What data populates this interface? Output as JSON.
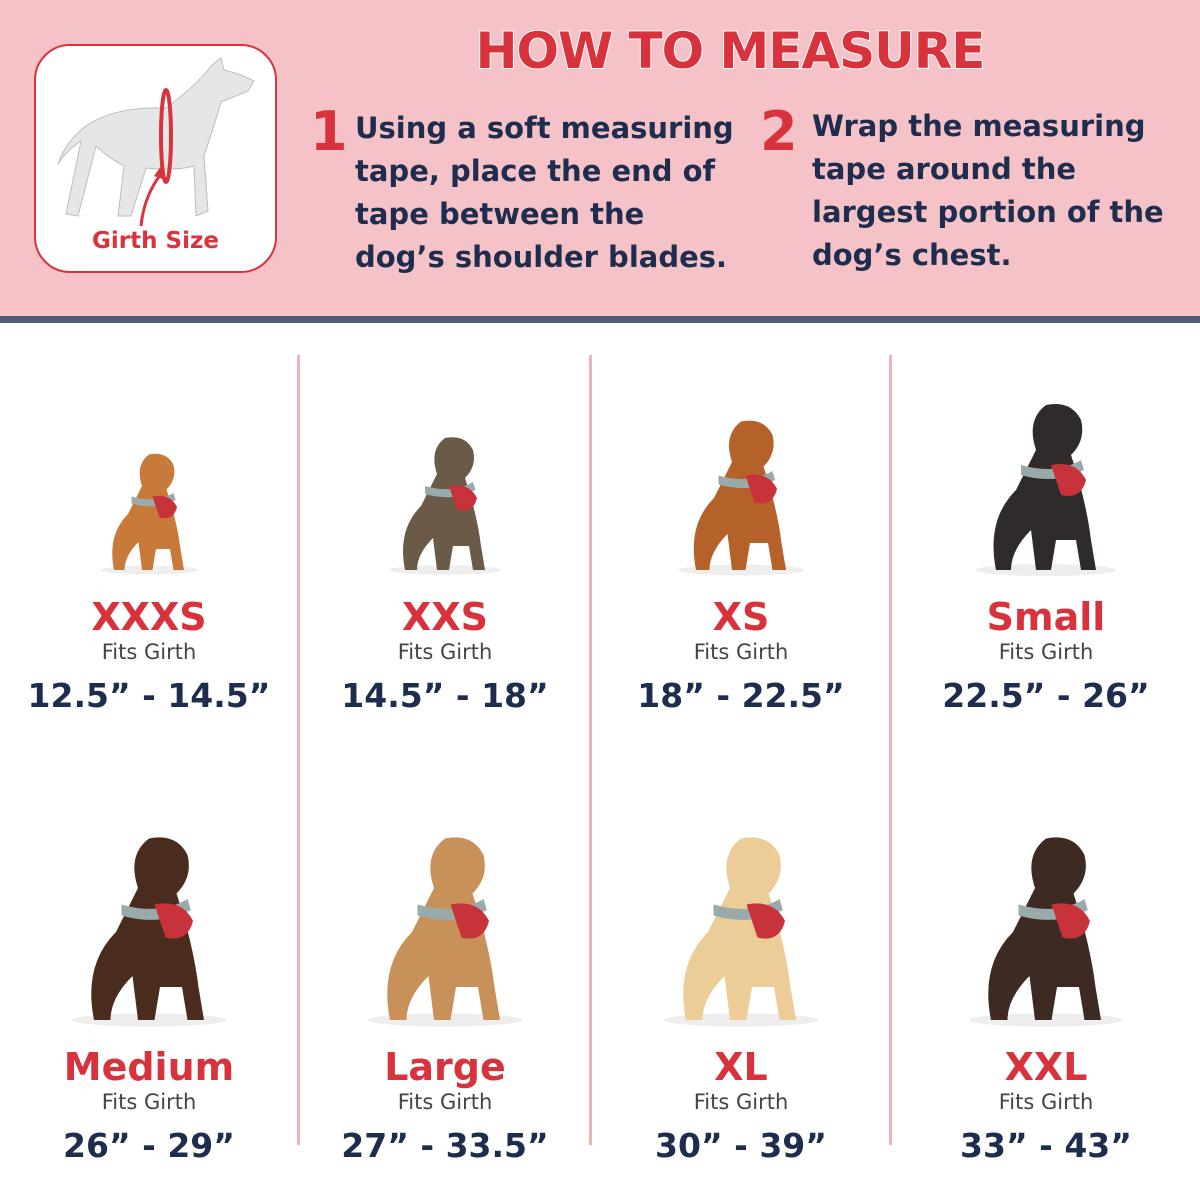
{
  "header": {
    "title": "HOW TO MEASURE",
    "girth_label": "Girth Size",
    "steps": [
      {
        "number": "1",
        "text": "Using a soft measuring tape, place the end of tape between the dog’s shoulder blades."
      },
      {
        "number": "2",
        "text": "Wrap the measuring tape around the largest portion of the dog’s chest."
      }
    ]
  },
  "colors": {
    "accent_red": "#d8323c",
    "navy": "#1e2d4d",
    "header_pink": "#f5c3c7"
  },
  "sizes": [
    {
      "size": "XXXS",
      "fits": "Fits Girth",
      "range": "12.5” - 14.5”",
      "dog": "dachshund-puppy",
      "coat": "#c77a3a"
    },
    {
      "size": "XXS",
      "fits": "Fits Girth",
      "range": "14.5” - 18”",
      "dog": "yorkshire-terrier",
      "coat": "#6b5a48"
    },
    {
      "size": "XS",
      "fits": "Fits Girth",
      "range": "18” - 22.5”",
      "dog": "dachshund",
      "coat": "#b4622a"
    },
    {
      "size": "Small",
      "fits": "Fits Girth",
      "range": "22.5” - 26”",
      "dog": "pug",
      "coat": "#2e2b2a"
    },
    {
      "size": "Medium",
      "fits": "Fits Girth",
      "range": "26” - 29”",
      "dog": "mixed-breed",
      "coat": "#4a2c1e"
    },
    {
      "size": "Large",
      "fits": "Fits Girth",
      "range": "27” - 33.5”",
      "dog": "shepherd-mix",
      "coat": "#c8915a"
    },
    {
      "size": "XL",
      "fits": "Fits Girth",
      "range": "30” - 39”",
      "dog": "golden-retriever",
      "coat": "#eccd98"
    },
    {
      "size": "XXL",
      "fits": "Fits Girth",
      "range": "33” - 43”",
      "dog": "doberman",
      "coat": "#3d2a22"
    }
  ]
}
